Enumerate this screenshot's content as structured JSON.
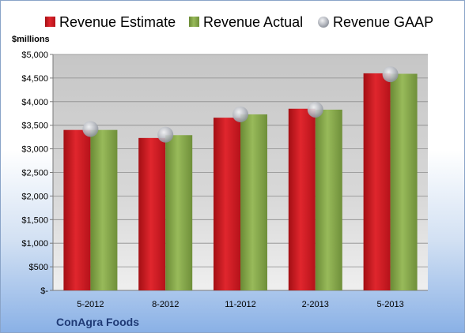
{
  "chart_data": {
    "type": "bar",
    "categories": [
      "5-2012",
      "8-2012",
      "11-2012",
      "2-2013",
      "5-2013"
    ],
    "series": [
      {
        "name": "Revenue Estimate",
        "kind": "bar",
        "color": "#c8161d",
        "values": [
          3400,
          3230,
          3660,
          3850,
          4600
        ]
      },
      {
        "name": "Revenue Actual",
        "kind": "bar",
        "color": "#7f9f45",
        "values": [
          3400,
          3290,
          3730,
          3830,
          4590
        ]
      },
      {
        "name": "Revenue GAAP",
        "kind": "marker",
        "color": "#b8bcc4",
        "values": [
          3420,
          3300,
          3730,
          3830,
          4580
        ]
      }
    ],
    "y_unit_label": "$millions",
    "y_ticks": [
      "$-",
      "$500",
      "$1,000",
      "$1,500",
      "$2,000",
      "$2,500",
      "$3,000",
      "$3,500",
      "$4,000",
      "$4,500",
      "$5,000"
    ],
    "ylim": [
      0,
      5000
    ],
    "grid": true,
    "legend_position": "top",
    "company": "ConAgra Foods"
  }
}
